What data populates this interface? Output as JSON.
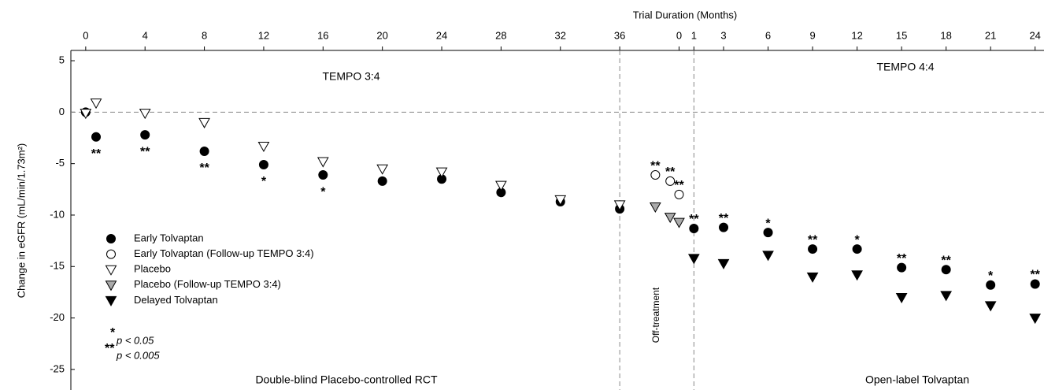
{
  "chart_data": {
    "type": "scatter",
    "x_label": "Trial Duration (Months)",
    "y_label": "Change in eGFR (mL/min/1.73m²)",
    "xlim": [
      -1,
      64.6
    ],
    "ylim": [
      -27,
      6
    ],
    "xticks": [
      0,
      4,
      8,
      12,
      16,
      20,
      24,
      28,
      32,
      36,
      {
        "value": 40,
        "label": "0"
      },
      {
        "value": 41,
        "label": "1"
      },
      {
        "value": 43,
        "label": "3"
      },
      {
        "value": 46,
        "label": "6"
      },
      {
        "value": 49,
        "label": "9"
      },
      {
        "value": 52,
        "label": "12"
      },
      {
        "value": 55,
        "label": "15"
      },
      {
        "value": 58,
        "label": "18"
      },
      {
        "value": 61,
        "label": "21"
      },
      {
        "value": 64,
        "label": "24"
      }
    ],
    "yticks": [
      5,
      0,
      -5,
      -10,
      -15,
      -20,
      -25
    ],
    "reference_lines_x": [
      36,
      41
    ],
    "reference_line_y": 0,
    "region_labels": [
      "TEMPO 3:4",
      "TEMPO 4:4",
      "Double-blind Placebo-controlled RCT",
      "Open-label Tolvaptan",
      "Off-treatment"
    ],
    "significance_legend": [
      {
        "symbol": "*",
        "label": "p < 0.05"
      },
      {
        "symbol": "**",
        "label": "p < 0.005"
      }
    ],
    "series": [
      {
        "name": "Early Tolvaptan",
        "marker": "circle",
        "color": "#000000",
        "x": [
          0,
          0.7,
          4,
          8,
          12,
          16,
          20,
          24,
          28,
          32,
          36,
          41,
          43,
          46,
          49,
          52,
          55,
          58,
          61,
          64
        ],
        "values": [
          0,
          -2.4,
          -2.2,
          -3.8,
          -5.1,
          -6.1,
          -6.7,
          -6.5,
          -7.8,
          -8.7,
          -9.4,
          -11.3,
          -11.2,
          -11.7,
          -13.3,
          -13.3,
          -15.1,
          -15.3,
          -16.8,
          -16.7
        ],
        "significance": [
          null,
          "**",
          "**",
          "**",
          "*",
          "*",
          null,
          null,
          null,
          null,
          null,
          "**",
          "**",
          "*",
          "**",
          "*",
          "**",
          "**",
          "*",
          "**"
        ]
      },
      {
        "name": "Early Tolvaptan (Follow-up TEMPO 3:4)",
        "marker": "circle",
        "color": "#ffffff",
        "x": [
          38.4,
          39.4,
          40
        ],
        "values": [
          -6.1,
          -6.7,
          -8.0
        ],
        "significance": [
          "**",
          "**",
          "**"
        ]
      },
      {
        "name": "Placebo",
        "marker": "triangle-down",
        "color": "#ffffff",
        "x": [
          0,
          0.7,
          4,
          8,
          12,
          16,
          20,
          24,
          28,
          32,
          36
        ],
        "values": [
          -0.1,
          0.9,
          -0.1,
          -1.0,
          -3.3,
          -4.8,
          -5.5,
          -5.8,
          -7.1,
          -8.5,
          -9.0
        ]
      },
      {
        "name": "Placebo (Follow-up TEMPO 3:4)",
        "marker": "triangle-down",
        "color": "#aaaaaa",
        "x": [
          38.4,
          39.4,
          40
        ],
        "values": [
          -9.2,
          -10.2,
          -10.7
        ]
      },
      {
        "name": "Delayed Tolvaptan",
        "marker": "triangle-down",
        "color": "#000000",
        "x": [
          41,
          43,
          46,
          49,
          52,
          55,
          58,
          61,
          64
        ],
        "values": [
          -14.2,
          -14.7,
          -13.9,
          -16.0,
          -15.8,
          -18.0,
          -17.8,
          -18.8,
          -20.0
        ]
      }
    ]
  }
}
